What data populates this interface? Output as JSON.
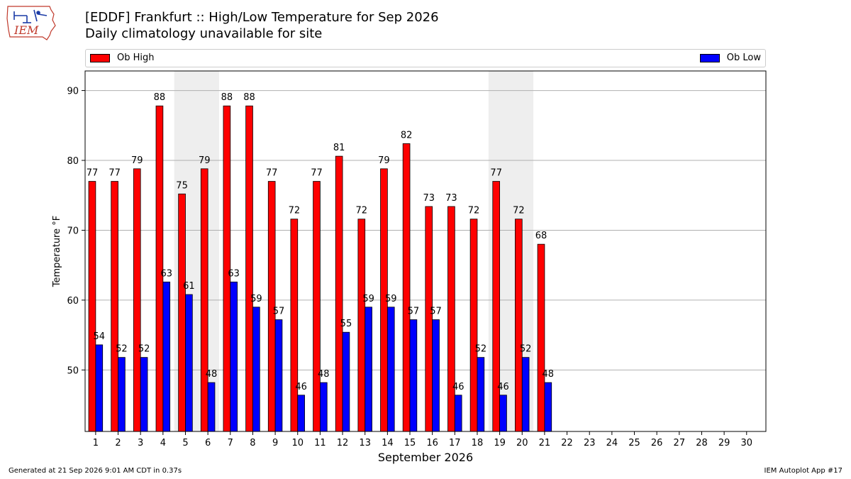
{
  "header": {
    "title_line1": "[EDDF] Frankfurt :: High/Low Temperature for Sep 2026",
    "title_line2": "Daily climatology unavailable for site"
  },
  "logo": {
    "text": "IEM"
  },
  "colors": {
    "high": "#ff0000",
    "low": "#0000ff",
    "weekend_band": "#eeeeee",
    "grid": "#b0b0b0"
  },
  "legend": [
    {
      "label": "Ob High",
      "color": "#ff0000"
    },
    {
      "label": "Ob Low",
      "color": "#0000ff"
    }
  ],
  "footer": {
    "generated": "Generated at 21 Sep 2026 9:01 AM CDT in 0.37s",
    "app": "IEM Autoplot App #17"
  },
  "chart_data": {
    "type": "bar",
    "xlabel": "September 2026",
    "ylabel": "Temperature °F",
    "ylim": [
      41.2,
      92.8
    ],
    "yticks": [
      50,
      60,
      70,
      80,
      90
    ],
    "grid": "horizontal",
    "legend_position": "top",
    "categories": [
      "1",
      "2",
      "3",
      "4",
      "5",
      "6",
      "7",
      "8",
      "9",
      "10",
      "11",
      "12",
      "13",
      "14",
      "15",
      "16",
      "17",
      "18",
      "19",
      "20",
      "21",
      "22",
      "23",
      "24",
      "25",
      "26",
      "27",
      "28",
      "29",
      "30"
    ],
    "shaded_days": [
      5,
      6,
      12,
      13,
      19,
      20,
      26,
      27
    ],
    "series": [
      {
        "name": "Ob High",
        "color": "#ff0000",
        "values": [
          77,
          77,
          79,
          88,
          75,
          79,
          88,
          88,
          77,
          72,
          77,
          81,
          72,
          79,
          82,
          73,
          73,
          72,
          77,
          72,
          68,
          null,
          null,
          null,
          null,
          null,
          null,
          null,
          null,
          null
        ],
        "plot_values": [
          77,
          77,
          78.8,
          87.8,
          75.2,
          78.8,
          87.8,
          87.8,
          77,
          71.6,
          77,
          80.6,
          71.6,
          78.8,
          82.4,
          73.4,
          73.4,
          71.6,
          77,
          71.6,
          68,
          null,
          null,
          null,
          null,
          null,
          null,
          null,
          null,
          null
        ]
      },
      {
        "name": "Ob Low",
        "color": "#0000ff",
        "values": [
          54,
          52,
          52,
          63,
          61,
          48,
          63,
          59,
          57,
          46,
          48,
          55,
          59,
          59,
          57,
          57,
          46,
          52,
          46,
          52,
          48,
          null,
          null,
          null,
          null,
          null,
          null,
          null,
          null,
          null
        ],
        "plot_values": [
          53.6,
          51.8,
          51.8,
          62.6,
          60.8,
          48.2,
          62.6,
          59,
          57.2,
          46.4,
          48.2,
          55.4,
          59,
          59,
          57.2,
          57.2,
          46.4,
          51.8,
          46.4,
          51.8,
          48.2,
          null,
          null,
          null,
          null,
          null,
          null,
          null,
          null,
          null
        ]
      }
    ]
  }
}
